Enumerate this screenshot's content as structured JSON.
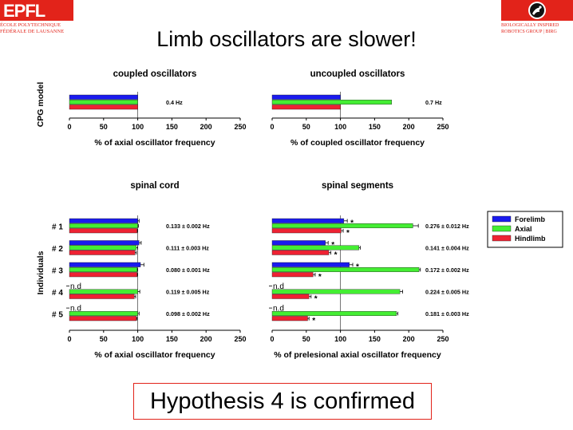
{
  "slide": {
    "title": "Limb oscillators are slower!",
    "conclusion": "Hypothesis 4 is confirmed",
    "logo_left": {
      "mark": "EPFL",
      "line1": "ÉCOLE POLYTECHNIQUE",
      "line2": "FÉDÉRALE DE LAUSANNE"
    },
    "logo_right": {
      "line1": "BIOLOGICALLY INSPIRED",
      "line2": "ROBOTICS GROUP | BIRG",
      "icon": "salamander-robot-icon"
    }
  },
  "colors": {
    "forelimb": "#1a1aee",
    "axial": "#44ee33",
    "hindlimb": "#ee2233",
    "accent": "#e2231a"
  },
  "legend": [
    "Forelimb",
    "Axial",
    "Hindlimb"
  ],
  "chart_data": [
    {
      "id": "coupled",
      "type": "bar",
      "title": "coupled oscillators",
      "xlabel": "% of axial oscillator frequency",
      "ylabel": "CPG model",
      "xlim": [
        0,
        250
      ],
      "xticks": [
        0,
        50,
        100,
        150,
        200,
        250
      ],
      "groups": [
        {
          "label": "",
          "forelimb": 100,
          "axial": 100,
          "hindlimb": 100,
          "annotation": "0.4 Hz"
        }
      ]
    },
    {
      "id": "uncoupled",
      "type": "bar",
      "title": "uncoupled oscillators",
      "xlabel": "% of coupled oscillator frequency",
      "ylabel": "",
      "xlim": [
        0,
        250
      ],
      "xticks": [
        0,
        50,
        100,
        150,
        200,
        250
      ],
      "groups": [
        {
          "label": "",
          "forelimb": 100,
          "axial": 175,
          "hindlimb": 100,
          "annotation": "0.7 Hz"
        }
      ]
    },
    {
      "id": "spinal-cord",
      "type": "bar",
      "title": "spinal cord",
      "xlabel": "% of axial oscillator frequency",
      "ylabel": "Individuals",
      "xlim": [
        0,
        250
      ],
      "xticks": [
        0,
        50,
        100,
        150,
        200,
        250
      ],
      "groups": [
        {
          "label": "# 1",
          "forelimb": 100,
          "forelimb_err": 2,
          "axial": 100,
          "axial_err": 1,
          "hindlimb": 99,
          "hindlimb_err": 1,
          "annotation": "0.133 ± 0.002 Hz"
        },
        {
          "label": "# 2",
          "forelimb": 102,
          "forelimb_err": 3,
          "axial": 98,
          "axial_err": 2,
          "hindlimb": 96,
          "hindlimb_err": 2,
          "annotation": "0.111 ± 0.003 Hz"
        },
        {
          "label": "# 3",
          "forelimb": 104,
          "forelimb_err": 5,
          "axial": 99,
          "axial_err": 1,
          "hindlimb": 99,
          "hindlimb_err": 1,
          "annotation": "0.080 ± 0.001 Hz"
        },
        {
          "label": "# 4",
          "forelimb_text": "n.d",
          "axial": 100,
          "axial_err": 3,
          "hindlimb": 95,
          "hindlimb_err": 2,
          "annotation": "0.119 ± 0.005 Hz"
        },
        {
          "label": "# 5",
          "forelimb_text": "n.d",
          "axial": 100,
          "axial_err": 2,
          "hindlimb": 98,
          "hindlimb_err": 1,
          "annotation": "0.098 ± 0.002 Hz"
        }
      ]
    },
    {
      "id": "spinal-segments",
      "type": "bar",
      "title": "spinal segments",
      "xlabel": "% of prelesional axial oscillator frequency",
      "ylabel": "",
      "xlim": [
        0,
        250
      ],
      "xticks": [
        0,
        50,
        100,
        150,
        200,
        250
      ],
      "groups": [
        {
          "label": "",
          "forelimb": 105,
          "forelimb_err": 5,
          "forelimb_sig": "*",
          "axial": 206,
          "axial_err": 8,
          "hindlimb": 101,
          "hindlimb_err": 3,
          "hindlimb_sig": "*",
          "annotation": "0.276 ± 0.012 Hz"
        },
        {
          "label": "",
          "forelimb": 78,
          "forelimb_err": 4,
          "forelimb_sig": "*",
          "axial": 127,
          "axial_err": 2,
          "hindlimb": 83,
          "hindlimb_err": 3,
          "hindlimb_sig": "*",
          "annotation": "0.141 ± 0.004 Hz"
        },
        {
          "label": "",
          "forelimb": 113,
          "forelimb_err": 5,
          "forelimb_sig": "*",
          "axial": 215,
          "axial_err": 2,
          "hindlimb": 60,
          "hindlimb_err": 3,
          "hindlimb_sig": "*",
          "annotation": "0.172 ± 0.002 Hz"
        },
        {
          "label": "",
          "forelimb_text": "n.d",
          "axial": 187,
          "axial_err": 4,
          "hindlimb": 54,
          "hindlimb_err": 3,
          "hindlimb_sig": "*",
          "annotation": "0.224 ± 0.005 Hz"
        },
        {
          "label": "",
          "forelimb_text": "n.d",
          "axial": 182,
          "axial_err": 2,
          "hindlimb": 52,
          "hindlimb_err": 2,
          "hindlimb_sig": "*",
          "annotation": "0.181 ± 0.003 Hz"
        }
      ]
    }
  ]
}
